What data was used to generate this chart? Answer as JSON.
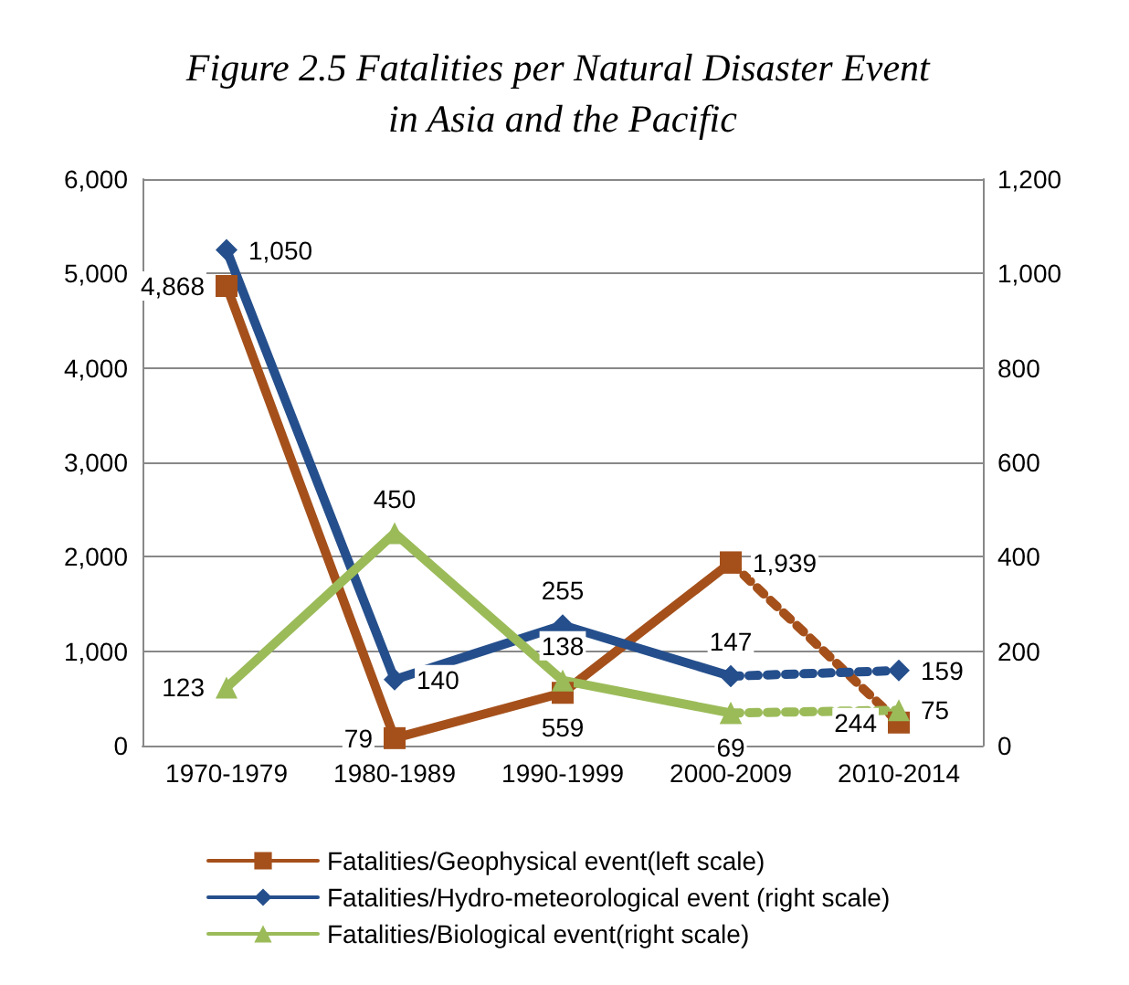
{
  "chart_data": {
    "type": "line",
    "title": "Figure 2.5 Fatalities per Natural Disaster Event in Asia and the Pacific",
    "categories": [
      "1970-1979",
      "1980-1989",
      "1990-1999",
      "2000-2009",
      "2010-2014"
    ],
    "series": [
      {
        "name": "Fatalities/Geophysical event(left scale)",
        "color": "#a5501b",
        "marker": "square",
        "line_style": "solid",
        "values": [
          4868,
          79,
          559,
          1939,
          null
        ],
        "value_labels": [
          "4,868",
          "79",
          "559",
          "1,939",
          null
        ]
      },
      {
        "name": "Fatalities/Hydro-meteorological event (right scale)",
        "color": "#254f8c",
        "marker": "diamond",
        "line_style": "solid",
        "axis": "y2",
        "values": [
          1050,
          140,
          255,
          147,
          null
        ],
        "value_labels": [
          "1,050",
          "140",
          "255",
          "147",
          null
        ]
      },
      {
        "name": "Fatalities/Biological event(right scale)",
        "color": "#9bbb59",
        "marker": "triangle",
        "line_style": "solid",
        "axis": "y2",
        "values": [
          123,
          450,
          138,
          69,
          null
        ],
        "value_labels": [
          "123",
          "450",
          "138",
          "69",
          null
        ]
      },
      {
        "color": "#a5501b",
        "marker": "square",
        "line_style": "dotted",
        "values": [
          null,
          null,
          null,
          1939,
          244
        ],
        "value_labels": [
          null,
          null,
          null,
          null,
          "244"
        ]
      },
      {
        "color": "#254f8c",
        "marker": "diamond",
        "line_style": "dotted",
        "axis": "y2",
        "values": [
          null,
          null,
          null,
          147,
          159
        ],
        "value_labels": [
          null,
          null,
          null,
          null,
          "159"
        ]
      },
      {
        "color": "#9bbb59",
        "marker": "triangle",
        "line_style": "dotted",
        "axis": "y2",
        "values": [
          null,
          null,
          null,
          69,
          75
        ],
        "value_labels": [
          null,
          null,
          null,
          null,
          "75"
        ]
      }
    ],
    "ylim": [
      0,
      6000
    ],
    "yticks": [
      0,
      {
        "value": 1000,
        "label": "1,000"
      },
      {
        "value": 2000,
        "label": "2,000"
      },
      {
        "value": 3000,
        "label": "3,000"
      },
      {
        "value": 4000,
        "label": "4,000"
      },
      {
        "value": 5000,
        "label": "5,000"
      },
      {
        "value": 6000,
        "label": "6,000"
      }
    ],
    "y2lim": [
      0,
      1200
    ],
    "y2ticks": [
      0,
      200,
      400,
      600,
      800,
      {
        "value": 1000,
        "label": "1,000"
      },
      {
        "value": 1200,
        "label": "1,200"
      }
    ],
    "grid": "y",
    "legend": "bottom"
  }
}
